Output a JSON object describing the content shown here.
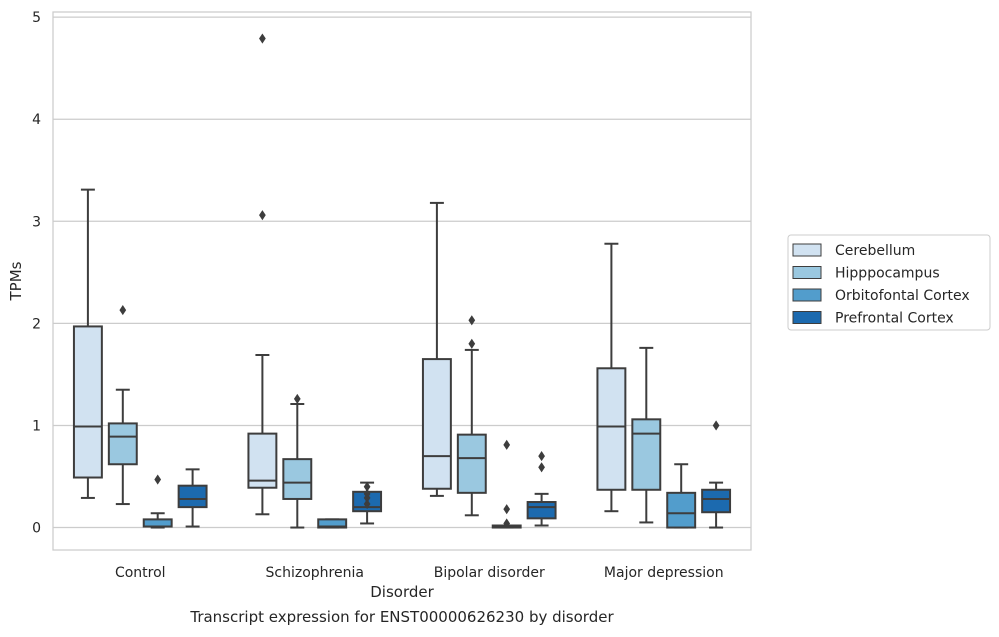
{
  "chart_data": {
    "type": "box",
    "caption": "Transcript expression for ENST00000626230 by disorder",
    "xlabel": "Disorder",
    "ylabel": "TPMs",
    "ylim": [
      -0.22,
      5.05
    ],
    "yticks": [
      0,
      1,
      2,
      3,
      4,
      5
    ],
    "grid": "horizontal",
    "legend_placement": "right",
    "categories": [
      "Control",
      "Schizophrenia",
      "Bipolar disorder",
      "Major depression"
    ],
    "series": [
      {
        "name": "Cerebellum",
        "color": "#d1e2f1",
        "boxes": [
          {
            "whisker_low": 0.29,
            "q1": 0.49,
            "median": 0.99,
            "q3": 1.97,
            "whisker_high": 3.31,
            "outliers": []
          },
          {
            "whisker_low": 0.13,
            "q1": 0.39,
            "median": 0.46,
            "q3": 0.92,
            "whisker_high": 1.69,
            "outliers": [
              3.06,
              4.79
            ]
          },
          {
            "whisker_low": 0.31,
            "q1": 0.38,
            "median": 0.7,
            "q3": 1.65,
            "whisker_high": 3.18,
            "outliers": []
          },
          {
            "whisker_low": 0.16,
            "q1": 0.37,
            "median": 0.99,
            "q3": 1.56,
            "whisker_high": 2.78,
            "outliers": []
          }
        ]
      },
      {
        "name": "Hipppocampus",
        "color": "#9ac8e0",
        "boxes": [
          {
            "whisker_low": 0.23,
            "q1": 0.62,
            "median": 0.89,
            "q3": 1.02,
            "whisker_high": 1.35,
            "outliers": [
              2.13
            ]
          },
          {
            "whisker_low": 0.0,
            "q1": 0.28,
            "median": 0.44,
            "q3": 0.67,
            "whisker_high": 1.21,
            "outliers": [
              1.26
            ]
          },
          {
            "whisker_low": 0.12,
            "q1": 0.34,
            "median": 0.68,
            "q3": 0.91,
            "whisker_high": 1.74,
            "outliers": [
              1.8,
              2.03
            ]
          },
          {
            "whisker_low": 0.05,
            "q1": 0.37,
            "median": 0.92,
            "q3": 1.06,
            "whisker_high": 1.76,
            "outliers": []
          }
        ]
      },
      {
        "name": "Orbitofontal Cortex",
        "color": "#529dcc",
        "boxes": [
          {
            "whisker_low": 0.0,
            "q1": 0.01,
            "median": 0.01,
            "q3": 0.08,
            "whisker_high": 0.14,
            "outliers": [
              0.47
            ]
          },
          {
            "whisker_low": 0.0,
            "q1": 0.0,
            "median": 0.01,
            "q3": 0.08,
            "whisker_high": 0.08,
            "outliers": []
          },
          {
            "whisker_low": 0.0,
            "q1": 0.0,
            "median": 0.01,
            "q3": 0.02,
            "whisker_high": 0.02,
            "outliers": [
              0.04,
              0.18,
              0.81
            ]
          },
          {
            "whisker_low": 0.0,
            "q1": 0.0,
            "median": 0.14,
            "q3": 0.34,
            "whisker_high": 0.62,
            "outliers": []
          }
        ]
      },
      {
        "name": "Prefrontal Cortex",
        "color": "#1c6aaf",
        "boxes": [
          {
            "whisker_low": 0.01,
            "q1": 0.2,
            "median": 0.28,
            "q3": 0.41,
            "whisker_high": 0.57,
            "outliers": []
          },
          {
            "whisker_low": 0.04,
            "q1": 0.16,
            "median": 0.2,
            "q3": 0.35,
            "whisker_high": 0.44,
            "outliers": [
              0.23,
              0.29,
              0.33,
              0.4
            ]
          },
          {
            "whisker_low": 0.02,
            "q1": 0.09,
            "median": 0.2,
            "q3": 0.25,
            "whisker_high": 0.33,
            "outliers": [
              0.59,
              0.7
            ]
          },
          {
            "whisker_low": 0.0,
            "q1": 0.15,
            "median": 0.28,
            "q3": 0.37,
            "whisker_high": 0.44,
            "outliers": [
              1.0
            ]
          }
        ]
      }
    ]
  }
}
